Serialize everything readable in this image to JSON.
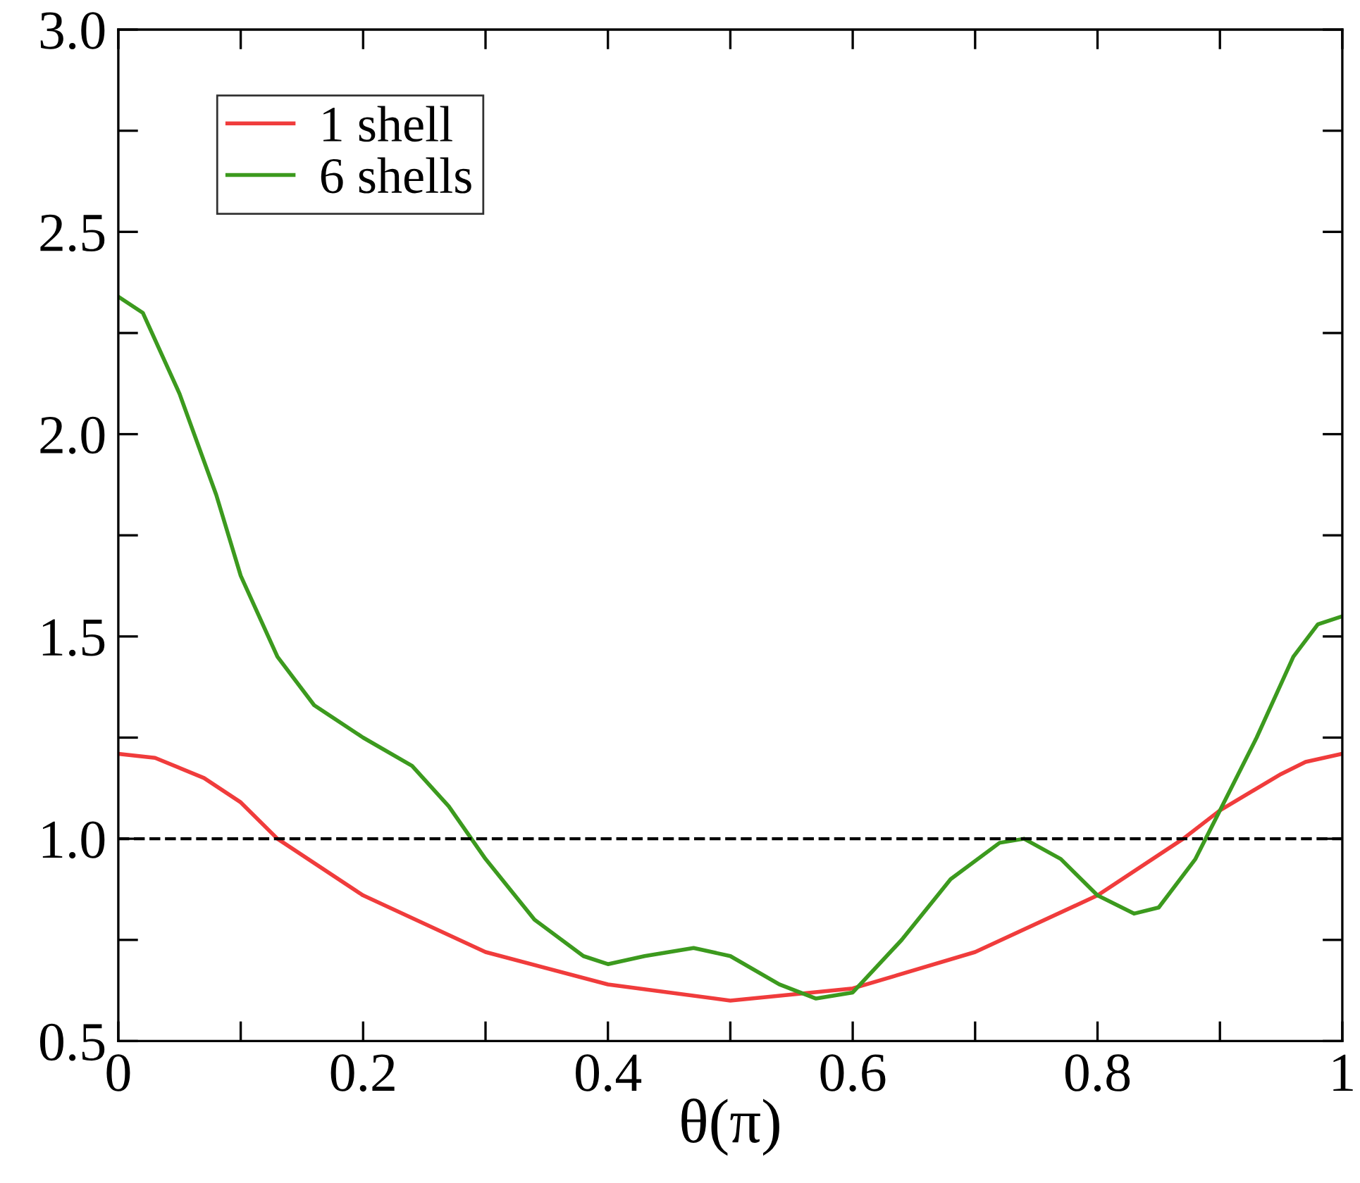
{
  "chart_data": {
    "type": "line",
    "xlabel": "θ(π)",
    "xlim": [
      0,
      1
    ],
    "ylim": [
      0.5,
      3.0
    ],
    "xticks": [
      0,
      {
        "value": 0.1,
        "label": null
      },
      0.2,
      {
        "value": 0.3,
        "label": null
      },
      0.4,
      {
        "value": 0.5,
        "label": null
      },
      0.6,
      {
        "value": 0.7,
        "label": null
      },
      0.8,
      {
        "value": 0.9,
        "label": null
      },
      1
    ],
    "yticks": [
      0.5,
      {
        "value": 0.75,
        "label": null
      },
      {
        "value": 1,
        "label": "1.0"
      },
      {
        "value": 1.25,
        "label": null
      },
      1.5,
      {
        "value": 1.75,
        "label": null
      },
      {
        "value": 2,
        "label": "2.0"
      },
      {
        "value": 2.25,
        "label": null
      },
      2.5,
      {
        "value": 2.75,
        "label": null
      },
      {
        "value": 3,
        "label": "3.0"
      }
    ],
    "grid": false,
    "legend": "top left",
    "line_style": "solid",
    "marker": "none",
    "ref_lines": [
      {
        "axis": "y",
        "value": 1.0,
        "color": "#000000",
        "line_style": "dashed"
      }
    ],
    "series": [
      {
        "name": "1 shell",
        "color": "#f03c3c",
        "x": [
          0,
          0.03,
          0.07,
          0.1,
          0.13,
          0.2,
          0.3,
          0.4,
          0.5,
          0.6,
          0.7,
          0.8,
          0.87,
          0.9,
          0.95,
          0.97,
          1.0
        ],
        "values": [
          1.21,
          1.2,
          1.15,
          1.09,
          1.0,
          0.86,
          0.72,
          0.64,
          0.6,
          0.63,
          0.72,
          0.86,
          1.0,
          1.07,
          1.16,
          1.19,
          1.21
        ]
      },
      {
        "name": "6 shells",
        "color": "#3c9a1e",
        "x": [
          0,
          0.02,
          0.05,
          0.08,
          0.1,
          0.13,
          0.16,
          0.2,
          0.24,
          0.27,
          0.3,
          0.34,
          0.38,
          0.4,
          0.43,
          0.47,
          0.5,
          0.54,
          0.57,
          0.6,
          0.64,
          0.68,
          0.72,
          0.74,
          0.77,
          0.8,
          0.83,
          0.85,
          0.88,
          0.9,
          0.93,
          0.96,
          0.98,
          1.0
        ],
        "values": [
          2.34,
          2.3,
          2.1,
          1.85,
          1.65,
          1.45,
          1.33,
          1.25,
          1.18,
          1.08,
          0.95,
          0.8,
          0.71,
          0.69,
          0.71,
          0.73,
          0.71,
          0.64,
          0.605,
          0.62,
          0.75,
          0.9,
          0.99,
          1.0,
          0.95,
          0.86,
          0.815,
          0.83,
          0.95,
          1.07,
          1.25,
          1.45,
          1.53,
          1.55
        ]
      }
    ]
  }
}
